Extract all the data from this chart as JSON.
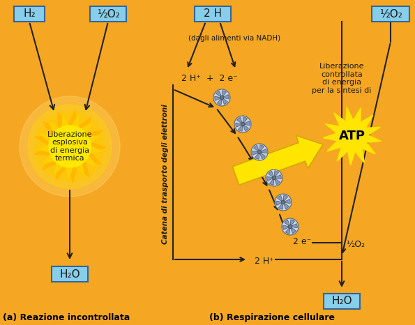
{
  "bg_color": "#F5A623",
  "box_color": "#87CEEB",
  "box_edge_color": "#336699",
  "title_a": "(a) Reazione incontrollata",
  "title_b": "(b) Respirazione cellulare",
  "label_H2": "H₂",
  "label_half_O2_left": "½O₂",
  "label_half_O2_right_top": "½O₂",
  "label_half_O2_right_bottom": "½O₂",
  "label_2H": "2 H",
  "label_dagli": "(dagli alimenti via NADH)",
  "label_2Hplus_2eminus": "2 H⁺  +  2 e⁻",
  "label_2eminus": "2 e⁻",
  "label_2Hplus_bottom": "2 H⁺",
  "label_H2O_left": "H₂O",
  "label_H2O_right": "H₂O",
  "label_explosion": "Liberazione\nesplosiva\ndi energia\ntermica",
  "label_chain": "Catena di trasporto degli elettroni",
  "label_liberation": "Liberazione\ncontrollata\ndi energia\nper la sintesi di",
  "label_ATP": "ATP",
  "text_color": "#1a1a1a",
  "arrow_color": "#222222"
}
